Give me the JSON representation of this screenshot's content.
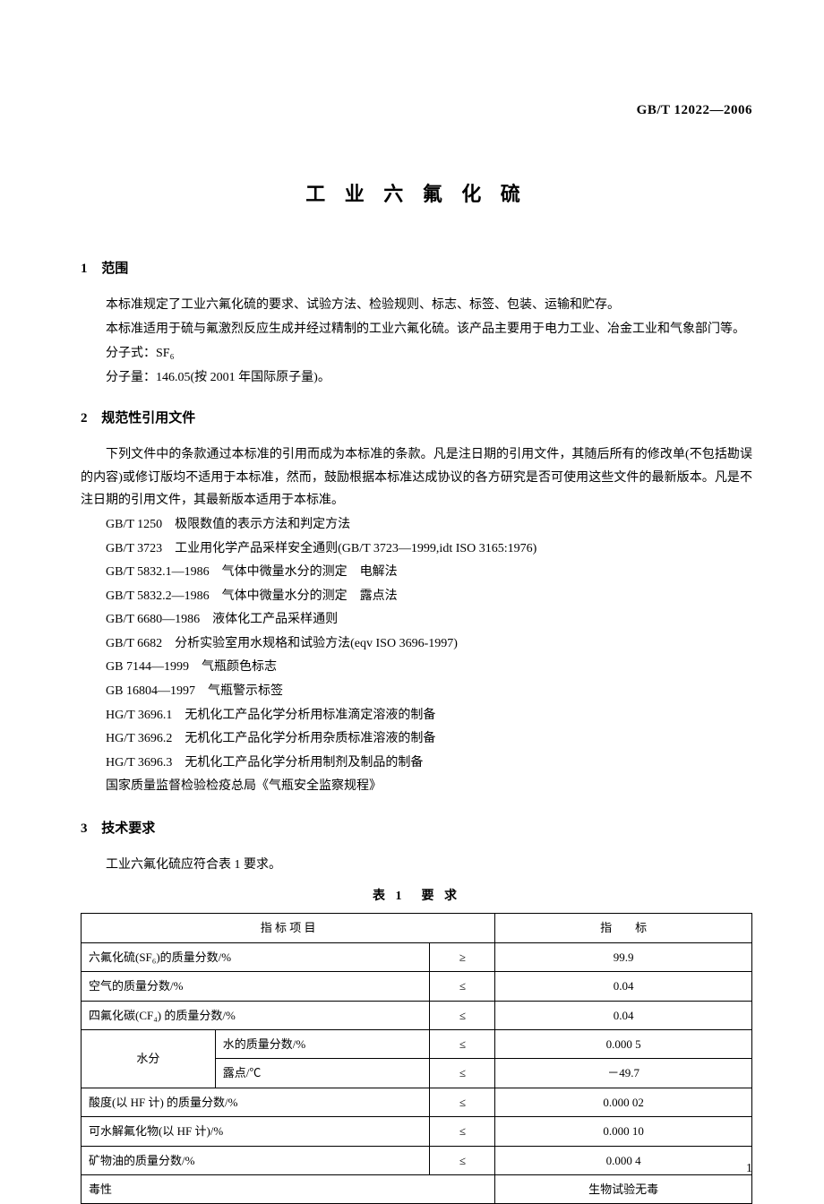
{
  "header": {
    "standard_code": "GB/T 12022—2006"
  },
  "title": "工 业 六 氟 化 硫",
  "sections": {
    "s1": {
      "num": "1",
      "label": "范围"
    },
    "s2": {
      "num": "2",
      "label": "规范性引用文件"
    },
    "s3": {
      "num": "3",
      "label": "技术要求"
    }
  },
  "paragraphs": {
    "scope1": "本标准规定了工业六氟化硫的要求、试验方法、检验规则、标志、标签、包装、运输和贮存。",
    "scope2": "本标准适用于硫与氟激烈反应生成并经过精制的工业六氟化硫。该产品主要用于电力工业、冶金工业和气象部门等。",
    "scope3": "分子式：SF₆",
    "scope4": "分子量：146.05(按 2001 年国际原子量)。",
    "norm1": "下列文件中的条款通过本标准的引用而成为本标准的条款。凡是注日期的引用文件，其随后所有的修改单(不包括勘误的内容)或修订版均不适用于本标准，然而，鼓励根据本标准达成协议的各方研究是否可使用这些文件的最新版本。凡是不注日期的引用文件，其最新版本适用于本标准。",
    "tech1": "工业六氟化硫应符合表 1 要求。"
  },
  "references": [
    "GB/T 1250　极限数值的表示方法和判定方法",
    "GB/T 3723　工业用化学产品采样安全通则(GB/T 3723—1999,idt ISO 3165:1976)",
    "GB/T 5832.1—1986　气体中微量水分的测定　电解法",
    "GB/T 5832.2—1986　气体中微量水分的测定　露点法",
    "GB/T 6680—1986　液体化工产品采样通则",
    "GB/T 6682　分析实验室用水规格和试验方法(eqv ISO 3696-1997)",
    "GB 7144—1999　气瓶颜色标志",
    "GB 16804—1997　气瓶警示标签",
    "HG/T 3696.1　无机化工产品化学分析用标准滴定溶液的制备",
    "HG/T 3696.2　无机化工产品化学分析用杂质标准溶液的制备",
    "HG/T 3696.3　无机化工产品化学分析用制剂及制品的制备",
    "国家质量监督检验检疫总局《气瓶安全监察规程》"
  ],
  "table": {
    "caption": "表 1　要 求",
    "header": {
      "item": "指 标 项 目",
      "value": "指　　标"
    },
    "rows": [
      {
        "item": "六氟化硫(SF₆)的质量分数/%",
        "sub": "",
        "sym": "≥",
        "val": "99.9",
        "span": true
      },
      {
        "item": "空气的质量分数/%",
        "sub": "",
        "sym": "≤",
        "val": "0.04",
        "span": true
      },
      {
        "item": "四氟化碳(CF₄) 的质量分数/%",
        "sub": "",
        "sym": "≤",
        "val": "0.04",
        "span": true
      },
      {
        "item": "水分",
        "sub": "水的质量分数/%",
        "sym": "≤",
        "val": "0.000 5",
        "rowspan": 2
      },
      {
        "item": "",
        "sub": "露点/℃",
        "sym": "≤",
        "val": "－49.7"
      },
      {
        "item": "酸度(以 HF 计) 的质量分数/%",
        "sub": "",
        "sym": "≤",
        "val": "0.000 02",
        "span": true
      },
      {
        "item": "可水解氟化物(以 HF 计)/%",
        "sub": "",
        "sym": "≤",
        "val": "0.000 10",
        "span": true
      },
      {
        "item": "矿物油的质量分数/%",
        "sub": "",
        "sym": "≤",
        "val": "0.000 4",
        "span": true
      },
      {
        "item": "毒性",
        "sub": "",
        "sym": "",
        "val": "生物试验无毒",
        "span": true,
        "fullspan": true
      }
    ]
  },
  "page_number": "1"
}
